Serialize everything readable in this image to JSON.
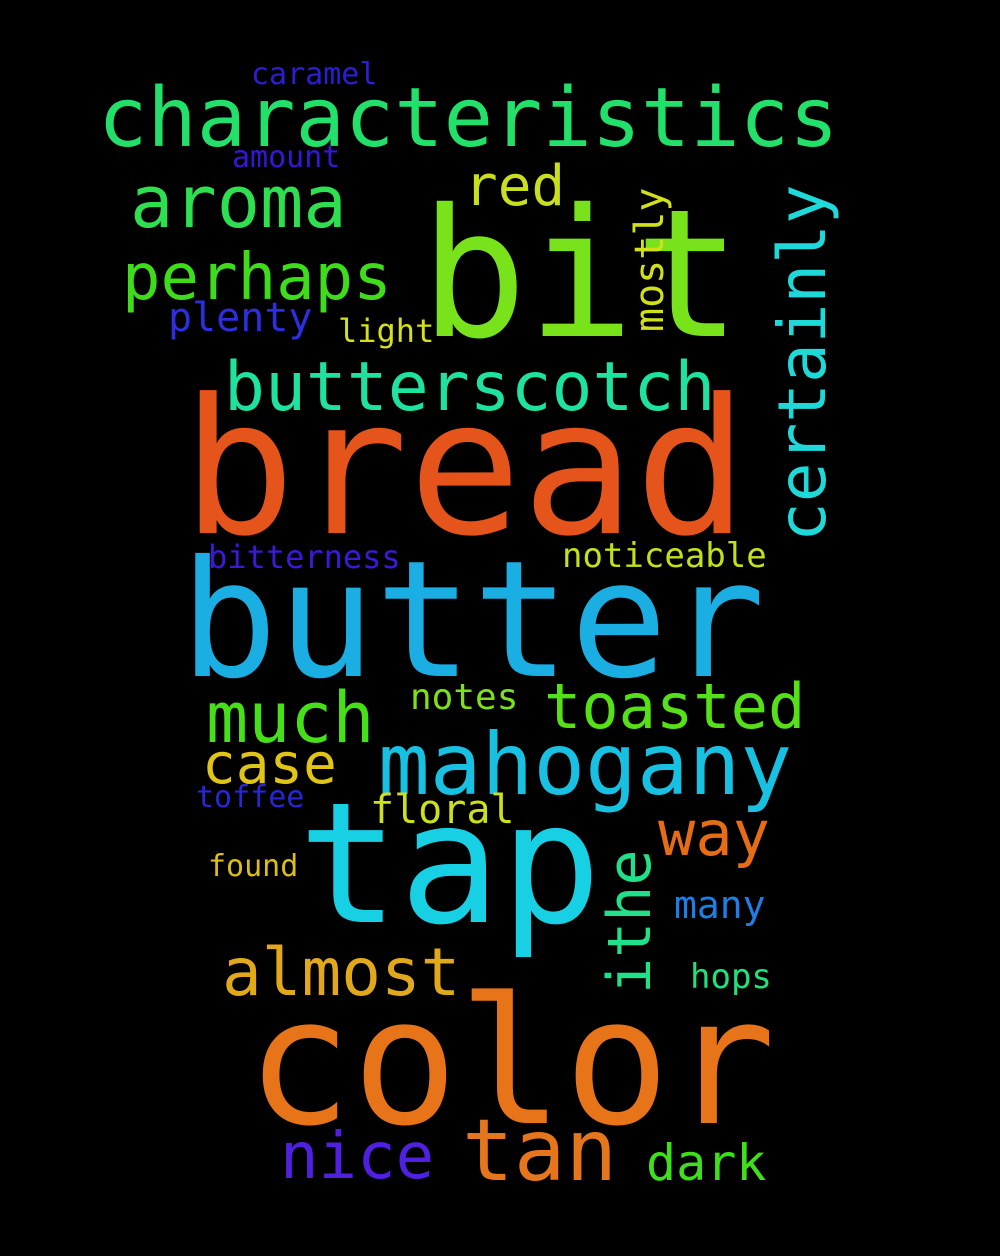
{
  "background": "#000000",
  "words": [
    {
      "text": "caramel",
      "color": "#2a1fd6"
    },
    {
      "text": "characteristics",
      "color": "#22e06a"
    },
    {
      "text": "amount",
      "color": "#3418d8"
    },
    {
      "text": "aroma",
      "color": "#2ee050"
    },
    {
      "text": "bit",
      "color": "#78e21a"
    },
    {
      "text": "red",
      "color": "#c8de1e"
    },
    {
      "text": "mostly",
      "color": "#d2e01a"
    },
    {
      "text": "certainly",
      "color": "#1fd8d8"
    },
    {
      "text": "perhaps",
      "color": "#3fdc1c"
    },
    {
      "text": "plenty",
      "color": "#2c2ee0"
    },
    {
      "text": "light",
      "color": "#d4e01c"
    },
    {
      "text": "butterscotch",
      "color": "#1ee29e"
    },
    {
      "text": "bread",
      "color": "#e5541a"
    },
    {
      "text": "bitterness",
      "color": "#3a1ad8"
    },
    {
      "text": "noticeable",
      "color": "#c4e018"
    },
    {
      "text": "butter",
      "color": "#1aaee2"
    },
    {
      "text": "much",
      "color": "#46e018"
    },
    {
      "text": "notes",
      "color": "#7ee01a"
    },
    {
      "text": "toasted",
      "color": "#56e018"
    },
    {
      "text": "case",
      "color": "#e0c418"
    },
    {
      "text": "mahogany",
      "color": "#18c0e2"
    },
    {
      "text": "toffee",
      "color": "#2628d8"
    },
    {
      "text": "floral",
      "color": "#cce01c"
    },
    {
      "text": "way",
      "color": "#e66c16"
    },
    {
      "text": "tap",
      "color": "#18d0e4"
    },
    {
      "text": "ithe",
      "color": "#20e08a"
    },
    {
      "text": "found",
      "color": "#dcbe18"
    },
    {
      "text": "many",
      "color": "#1e7ee6"
    },
    {
      "text": "almost",
      "color": "#e0a81a"
    },
    {
      "text": "hops",
      "color": "#22e07a"
    },
    {
      "text": "color",
      "color": "#e8741a"
    },
    {
      "text": "tan",
      "color": "#e6761c"
    },
    {
      "text": "nice",
      "color": "#5020e0"
    },
    {
      "text": "dark",
      "color": "#3ee01c"
    }
  ]
}
